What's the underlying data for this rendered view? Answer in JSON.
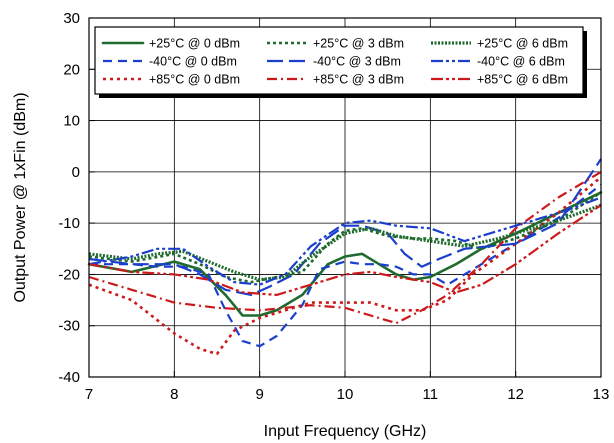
{
  "chart_data": {
    "type": "line",
    "title": "",
    "xlabel": "Input Frequency (GHz)",
    "ylabel": "Output Power @ 1xFin (dBm)",
    "xlim": [
      7,
      13
    ],
    "ylim": [
      -40,
      30
    ],
    "xticks": [
      "7",
      "8",
      "9",
      "10",
      "11",
      "12",
      "13"
    ],
    "yticks": [
      "-40",
      "-30",
      "-20",
      "-10",
      "0",
      "10",
      "20",
      "30"
    ],
    "grid": true,
    "legend_position": "top",
    "series": [
      {
        "name": "+25°C @ 0 dBm",
        "color": "#1f6b2e",
        "style": "solid",
        "x": [
          7,
          7.5,
          8,
          8.3,
          8.6,
          8.8,
          9,
          9.2,
          9.5,
          9.8,
          10,
          10.2,
          10.4,
          10.6,
          10.8,
          11,
          11.3,
          11.6,
          12,
          12.5,
          13
        ],
        "y": [
          -18,
          -19.5,
          -17.5,
          -19,
          -24,
          -28,
          -28,
          -27,
          -24,
          -18,
          -16.5,
          -16,
          -18,
          -20,
          -21,
          -20.5,
          -18,
          -15,
          -12,
          -8,
          -4
        ]
      },
      {
        "name": "-40°C @ 0 dBm",
        "color": "#1a3fcc",
        "style": "dash",
        "x": [
          7,
          7.5,
          7.8,
          8.1,
          8.4,
          8.6,
          8.8,
          9,
          9.2,
          9.5,
          9.7,
          10,
          10.2,
          10.4,
          10.6,
          10.8,
          11,
          11.2,
          11.5,
          12,
          12.5,
          13
        ],
        "y": [
          -18,
          -18,
          -18.5,
          -18.5,
          -20,
          -27,
          -33,
          -34,
          -32,
          -26,
          -19,
          -17.5,
          -18,
          -18,
          -18.5,
          -20,
          -20,
          -22,
          -19,
          -14,
          -9,
          -2.5
        ]
      },
      {
        "name": "+85°C @ 0 dBm",
        "color": "#cc1a1a",
        "style": "dot",
        "x": [
          7,
          7.5,
          8,
          8.3,
          8.5,
          8.7,
          9,
          9.3,
          9.6,
          10,
          10.3,
          10.6,
          10.9,
          11.2,
          11.5,
          12,
          12.5,
          13
        ],
        "y": [
          -22,
          -25,
          -31.5,
          -34.5,
          -35.5,
          -31,
          -28.5,
          -27,
          -25.5,
          -25.5,
          -25.5,
          -27,
          -27,
          -25,
          -20,
          -14,
          -8,
          -1
        ]
      },
      {
        "name": "+25°C @ 3 dBm",
        "color": "#1f6b2e",
        "style": "dotted-dense",
        "x": [
          7,
          7.5,
          8,
          8.3,
          8.6,
          8.9,
          9.2,
          9.5,
          9.8,
          10,
          10.2,
          10.5,
          10.8,
          11,
          11.3,
          11.6,
          12,
          12.5,
          13
        ],
        "y": [
          -16.5,
          -17.5,
          -16,
          -18,
          -20.5,
          -21.5,
          -20.5,
          -19.5,
          -14,
          -11.5,
          -11,
          -12.5,
          -13,
          -13,
          -13.5,
          -15,
          -13,
          -9.5,
          -4
        ]
      },
      {
        "name": "-40°C @ 3 dBm",
        "color": "#1a3fcc",
        "style": "longdash",
        "x": [
          7,
          7.5,
          8,
          8.3,
          8.6,
          8.9,
          9.1,
          9.4,
          9.7,
          10,
          10.2,
          10.5,
          10.7,
          10.9,
          11.1,
          11.4,
          11.7,
          12,
          12.5,
          13
        ],
        "y": [
          -17,
          -18,
          -18,
          -20,
          -23,
          -24,
          -22.5,
          -20,
          -14,
          -10.5,
          -10.5,
          -12,
          -16,
          -18.5,
          -17,
          -15,
          -14.5,
          -14,
          -10,
          2.5
        ]
      },
      {
        "name": "+85°C @ 3 dBm",
        "color": "#cc1a1a",
        "style": "dashdot",
        "x": [
          7,
          7.5,
          8,
          8.5,
          9,
          9.3,
          9.6,
          10,
          10.3,
          10.6,
          10.9,
          11.2,
          11.6,
          12,
          12.5,
          13
        ],
        "y": [
          -20.5,
          -23,
          -25.5,
          -26.5,
          -27,
          -26.5,
          -26,
          -26.5,
          -28,
          -29.5,
          -27,
          -24,
          -18,
          -11,
          -5,
          0
        ]
      },
      {
        "name": "+25°C @ 6 dBm",
        "color": "#1f6b2e",
        "style": "densedot",
        "x": [
          7,
          7.5,
          7.8,
          8.1,
          8.4,
          8.7,
          9,
          9.3,
          9.6,
          10,
          10.3,
          10.6,
          11,
          11.4,
          11.8,
          12,
          12.5,
          13
        ],
        "y": [
          -16,
          -17,
          -16,
          -15.5,
          -17.5,
          -19.5,
          -21,
          -20.5,
          -16.5,
          -12,
          -11,
          -12.5,
          -13.5,
          -14.5,
          -13,
          -12,
          -9.5,
          -6.5
        ]
      },
      {
        "name": "-40°C @ 6 dBm",
        "color": "#1a3fcc",
        "style": "dashdotdot",
        "x": [
          7,
          7.5,
          7.8,
          8.1,
          8.4,
          8.7,
          9,
          9.3,
          9.6,
          10,
          10.3,
          10.6,
          11,
          11.4,
          11.8,
          12.2,
          12.6,
          13
        ],
        "y": [
          -18,
          -16.5,
          -15,
          -15,
          -18.5,
          -21.5,
          -22,
          -20,
          -14.5,
          -10,
          -9.5,
          -10.5,
          -11,
          -13.5,
          -11.5,
          -9.5,
          -7.5,
          -5
        ]
      },
      {
        "name": "+85°C @ 6 dBm",
        "color": "#cc1a1a",
        "style": "dashdotdot",
        "x": [
          7,
          7.5,
          8,
          8.4,
          8.8,
          9.2,
          9.6,
          10,
          10.3,
          10.6,
          11,
          11.3,
          11.6,
          12,
          12.5,
          13
        ],
        "y": [
          -18,
          -19.5,
          -20,
          -21,
          -23.5,
          -24,
          -22,
          -20,
          -19.5,
          -20.5,
          -21.5,
          -23.5,
          -22,
          -18,
          -12,
          -6.5
        ]
      }
    ]
  }
}
